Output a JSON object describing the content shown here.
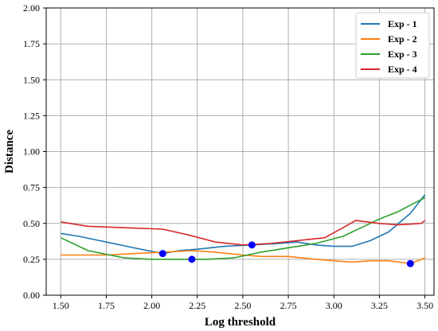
{
  "chart_data": {
    "type": "line",
    "xlabel": "Log threshold",
    "ylabel": "Distance",
    "xlim": [
      1.42,
      3.55
    ],
    "ylim": [
      0.0,
      2.0
    ],
    "xticks": [
      "1.50",
      "1.75",
      "2.00",
      "2.25",
      "2.50",
      "2.75",
      "3.00",
      "3.25",
      "3.50"
    ],
    "yticks": [
      "0.00",
      "0.25",
      "0.50",
      "0.75",
      "1.00",
      "1.25",
      "1.50",
      "1.75",
      "2.00"
    ],
    "grid": true,
    "legend_position": "top-right",
    "series": [
      {
        "name": "Exp - 1",
        "color": "#1f77b4",
        "x": [
          1.5,
          1.6,
          1.75,
          1.9,
          2.06,
          2.15,
          2.25,
          2.4,
          2.55,
          2.7,
          2.8,
          2.9,
          3.0,
          3.1,
          3.2,
          3.3,
          3.42,
          3.5
        ],
        "y": [
          0.43,
          0.41,
          0.37,
          0.33,
          0.29,
          0.31,
          0.32,
          0.34,
          0.35,
          0.36,
          0.37,
          0.35,
          0.34,
          0.34,
          0.38,
          0.44,
          0.57,
          0.7
        ]
      },
      {
        "name": "Exp - 2",
        "color": "#ff7f0e",
        "x": [
          1.5,
          1.6,
          1.75,
          1.9,
          2.06,
          2.22,
          2.35,
          2.5,
          2.6,
          2.75,
          2.9,
          3.0,
          3.1,
          3.2,
          3.3,
          3.42,
          3.5
        ],
        "y": [
          0.28,
          0.28,
          0.28,
          0.29,
          0.3,
          0.31,
          0.3,
          0.28,
          0.27,
          0.27,
          0.25,
          0.24,
          0.23,
          0.24,
          0.24,
          0.22,
          0.26
        ]
      },
      {
        "name": "Exp - 3",
        "color": "#2ca02c",
        "x": [
          1.5,
          1.65,
          1.85,
          2.0,
          2.15,
          2.3,
          2.45,
          2.6,
          2.75,
          2.9,
          3.05,
          3.15,
          3.25,
          3.35,
          3.5
        ],
        "y": [
          0.4,
          0.31,
          0.26,
          0.25,
          0.25,
          0.25,
          0.26,
          0.3,
          0.33,
          0.36,
          0.41,
          0.47,
          0.53,
          0.58,
          0.68
        ]
      },
      {
        "name": "Exp - 4",
        "color": "#d62728",
        "x": [
          1.5,
          1.65,
          1.85,
          2.06,
          2.2,
          2.35,
          2.5,
          2.65,
          2.8,
          2.95,
          3.05,
          3.12,
          3.25,
          3.35,
          3.48,
          3.5
        ],
        "y": [
          0.51,
          0.48,
          0.47,
          0.46,
          0.42,
          0.37,
          0.35,
          0.36,
          0.38,
          0.4,
          0.47,
          0.52,
          0.5,
          0.49,
          0.5,
          0.52
        ]
      }
    ],
    "markers": {
      "color": "#0000ff",
      "points": [
        {
          "x": 2.06,
          "y": 0.29
        },
        {
          "x": 2.22,
          "y": 0.25
        },
        {
          "x": 2.55,
          "y": 0.35
        },
        {
          "x": 3.42,
          "y": 0.22
        }
      ]
    }
  }
}
